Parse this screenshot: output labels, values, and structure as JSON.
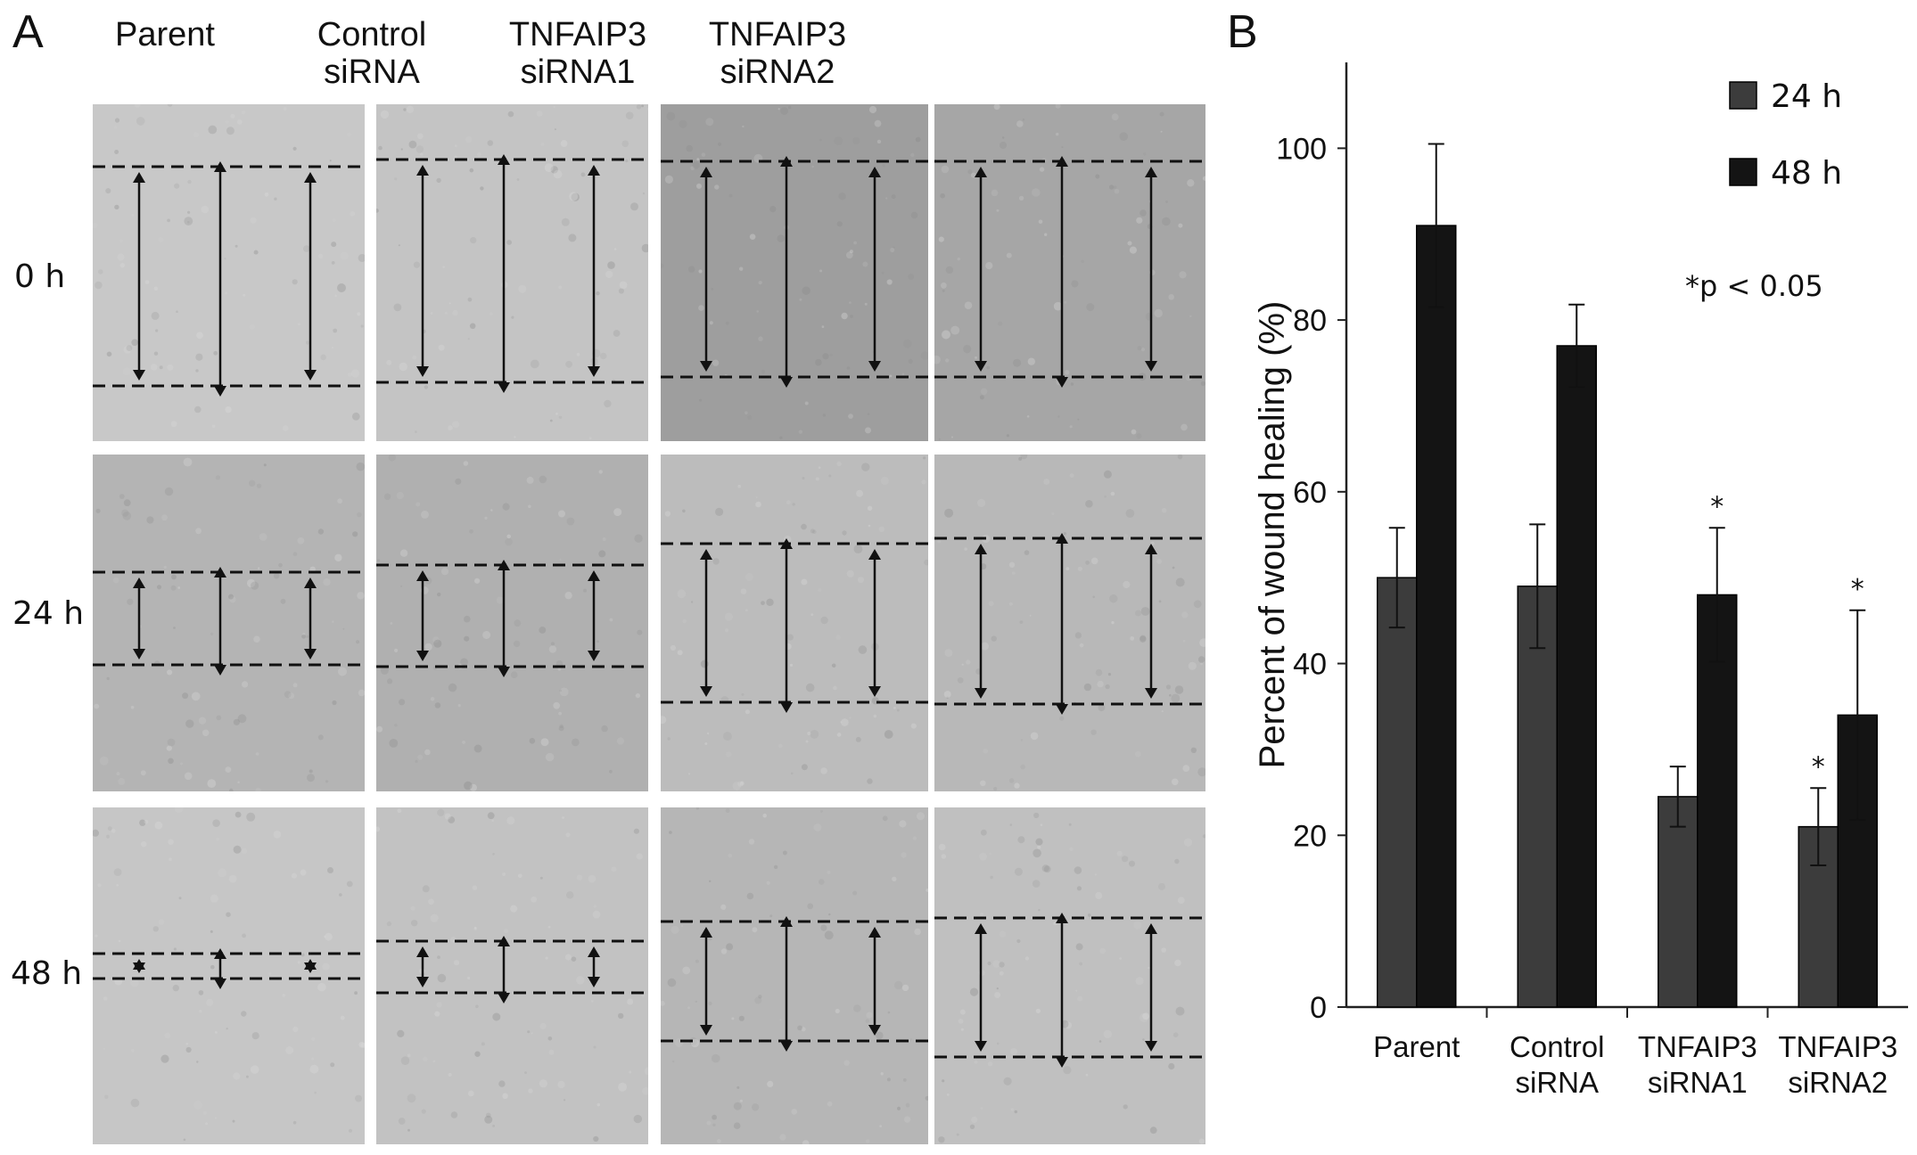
{
  "panel_a": {
    "letter": "A",
    "columns": [
      {
        "line1": "Parent",
        "line2": ""
      },
      {
        "line1": "Control",
        "line2": "siRNA"
      },
      {
        "line1": "TNFAIP3",
        "line2": "siRNA1"
      },
      {
        "line1": "TNFAIP3",
        "line2": "siRNA2"
      }
    ],
    "rows": [
      "0 h",
      "24 h",
      "48 h"
    ]
  },
  "panel_b": {
    "letter": "B",
    "significance_note": "*p < 0.05"
  },
  "colors": {
    "series_24h": "#3c3c3c",
    "series_48h": "#141414",
    "axis": "#222222"
  },
  "chart_data": {
    "type": "bar",
    "categories": [
      [
        "Parent"
      ],
      [
        "Control",
        "siRNA"
      ],
      [
        "TNFAIP3",
        "siRNA1"
      ],
      [
        "TNFAIP3",
        "siRNA2"
      ]
    ],
    "series": [
      {
        "name": "24 h",
        "values": [
          50,
          49,
          24.5,
          21
        ],
        "errors": [
          5.8,
          7.2,
          3.5,
          4.5
        ],
        "significant": [
          false,
          false,
          false,
          true
        ]
      },
      {
        "name": "48 h",
        "values": [
          91,
          77,
          48,
          34
        ],
        "errors": [
          9.5,
          4.8,
          7.8,
          12.2
        ],
        "significant": [
          false,
          false,
          true,
          true
        ]
      }
    ],
    "xlabel": "",
    "ylabel": "Percent of wound healing (%)",
    "ylim": [
      0,
      110
    ],
    "yticks": [
      0,
      20,
      40,
      60,
      80,
      100
    ],
    "legend_position": "top-right",
    "grid": false
  }
}
